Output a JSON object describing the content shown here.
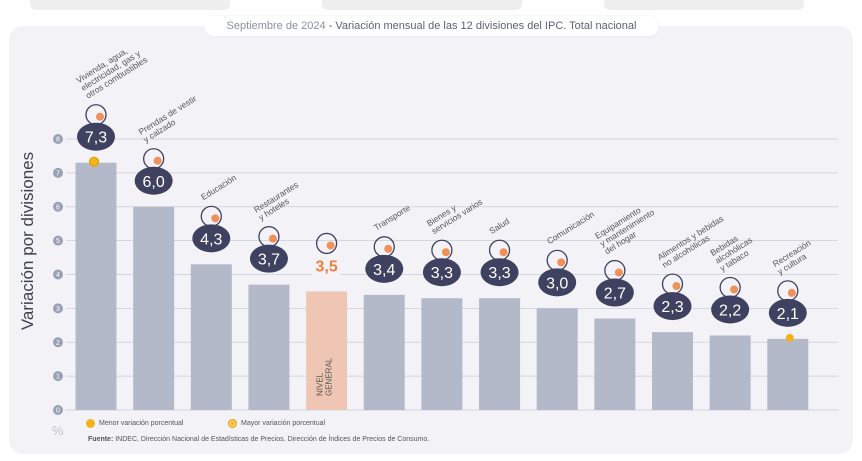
{
  "header": {
    "date": "Septiembre de 2024",
    "separator": " - ",
    "description": "Variación mensual de las 12 divisiones del IPC. Total nacional"
  },
  "chart_data": {
    "type": "bar",
    "ylabel": "Variación por divisiones",
    "yunit": "%",
    "ylim": [
      0,
      8
    ],
    "yticks": [
      "0",
      "1",
      "2",
      "3",
      "4",
      "5",
      "6",
      "7",
      "8"
    ],
    "grid": true,
    "categories": [
      "Vivienda, agua, electricidad, gas y otros combustibles",
      "Prendas de vestir y calzado",
      "Educación",
      "Restaurantes y hoteles",
      "NIVEL GENERAL",
      "Transporte",
      "Bienes y servicios varios",
      "Salud",
      "Comunicación",
      "Equipamiento y mantenimiento del hogar",
      "Alimentos y bebidas no alcohólicas",
      "Bebidas alcohólicas y tabaco",
      "Recreación y cultura"
    ],
    "category_lines": [
      [
        "Vivienda, agua,",
        "electricidad, gas y",
        "otros combustibles"
      ],
      [
        "Prendas de vestir",
        "y calzado"
      ],
      [
        "Educación"
      ],
      [
        "Restaurantes",
        "y hoteles"
      ],
      [
        "NIVEL",
        "GENERAL"
      ],
      [
        "Transporte"
      ],
      [
        "Bienes y",
        "servicios varios"
      ],
      [
        "Salud"
      ],
      [
        "Comunicación"
      ],
      [
        "Equipamiento",
        "y mantenimiento",
        "del hogar"
      ],
      [
        "Alimentos y bebidas",
        "no alcohólicas"
      ],
      [
        "Bebidas",
        "alcohólicas",
        "y tabaco"
      ],
      [
        "Recreación",
        "y cultura"
      ]
    ],
    "values": [
      7.3,
      6.0,
      4.3,
      3.7,
      3.5,
      3.4,
      3.3,
      3.3,
      3.0,
      2.7,
      2.3,
      2.2,
      2.1
    ],
    "value_labels": [
      "7,3",
      "6,0",
      "4,3",
      "3,7",
      "3,5",
      "3,4",
      "3,3",
      "3,3",
      "3,0",
      "2,7",
      "2,3",
      "2,2",
      "2,1"
    ],
    "highlight_index": 4,
    "max_index": 0,
    "min_index": 12,
    "colors": {
      "bar": "#b4b9c9",
      "highlight_bar": "#efc6b3",
      "badge": "#3f4160",
      "badge_text": "#ffffff",
      "highlight_text": "#f07f3c",
      "min_dot": "#f3b21b",
      "max_dot": "#f3b21b",
      "grid": "#c9ccd8",
      "tick_bubble": "#9aa0b5"
    }
  },
  "legend": {
    "min_label": "Menor variación porcentual",
    "max_label": "Mayor variación porcentual"
  },
  "source": {
    "label": "Fuente:",
    "text": " INDEC, Dirección Nacional de Estadísticas de Precios. Dirección de Índices de Precios de Consumo."
  }
}
